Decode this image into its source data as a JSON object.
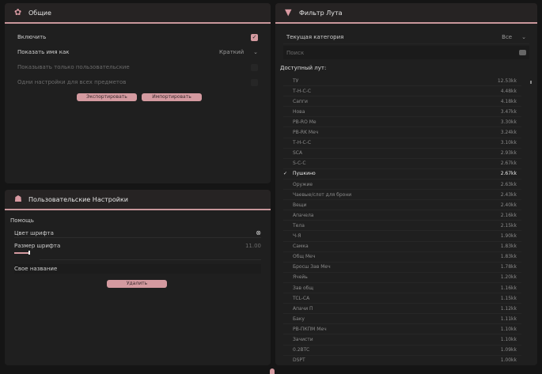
{
  "general": {
    "title": "Общие",
    "enable": "Включить",
    "show_name_as": "Показать имя как",
    "name_mode": "Краткий",
    "only_custom": "Показывать только пользовательские",
    "same_settings": "Одни настройки для всех предметов",
    "export": "Экспортировать",
    "import": "Импортировать"
  },
  "custom": {
    "title": "Пользовательские Настройки",
    "group": "Помощь",
    "font_color": "Цвет шрифта",
    "font_size": "Размер шрифта",
    "font_size_value": "11.00",
    "custom_name": "Свое название",
    "delete": "Удалить"
  },
  "filter": {
    "title": "Фильтр Лута",
    "current_category": "Текущая категория",
    "category_value": "Все",
    "search_placeholder": "Поиск",
    "available": "Доступный лут:",
    "items": [
      {
        "name": "ТУ",
        "value": "12.53kk"
      },
      {
        "name": "Т-Н-С-С",
        "value": "4.48kk"
      },
      {
        "name": "Сапги",
        "value": "4.18kk"
      },
      {
        "name": "Нова",
        "value": "3.47kk"
      },
      {
        "name": "PB-RO Ме",
        "value": "3.30kk"
      },
      {
        "name": "PB-RK Меч",
        "value": "3.24kk"
      },
      {
        "name": "Т-Н-С-С",
        "value": "3.10kk"
      },
      {
        "name": "SCA",
        "value": "2.93kk"
      },
      {
        "name": "S-C-C",
        "value": "2.67kk"
      },
      {
        "name": "Пушкино",
        "value": "2.67kk",
        "selected": true
      },
      {
        "name": "Оружие",
        "value": "2.63kk"
      },
      {
        "name": "Чаевые/слот для брони",
        "value": "2.43kk"
      },
      {
        "name": "Вещи",
        "value": "2.40kk"
      },
      {
        "name": "Апачела",
        "value": "2.16kk"
      },
      {
        "name": "Тела",
        "value": "2.15kk"
      },
      {
        "name": "Ч-Я",
        "value": "1.90kk"
      },
      {
        "name": "Самка",
        "value": "1.83kk"
      },
      {
        "name": "Общ Меч",
        "value": "1.83kk"
      },
      {
        "name": "Бросш Зав Меч",
        "value": "1.78kk"
      },
      {
        "name": "Ячейь",
        "value": "1.20kk"
      },
      {
        "name": "Зав общ",
        "value": "1.16kk"
      },
      {
        "name": "TCL-CA",
        "value": "1.15kk"
      },
      {
        "name": "Апачи П",
        "value": "1.12kk"
      },
      {
        "name": "Баку",
        "value": "1.11kk"
      },
      {
        "name": "PB-ПКПМ Меч",
        "value": "1.10kk"
      },
      {
        "name": "Зачисти",
        "value": "1.10kk"
      },
      {
        "name": "0.2BTC",
        "value": "1.09kk"
      },
      {
        "name": "DSPT",
        "value": "1.00kk"
      }
    ]
  },
  "colors": {
    "accent": "#d49aa0"
  }
}
